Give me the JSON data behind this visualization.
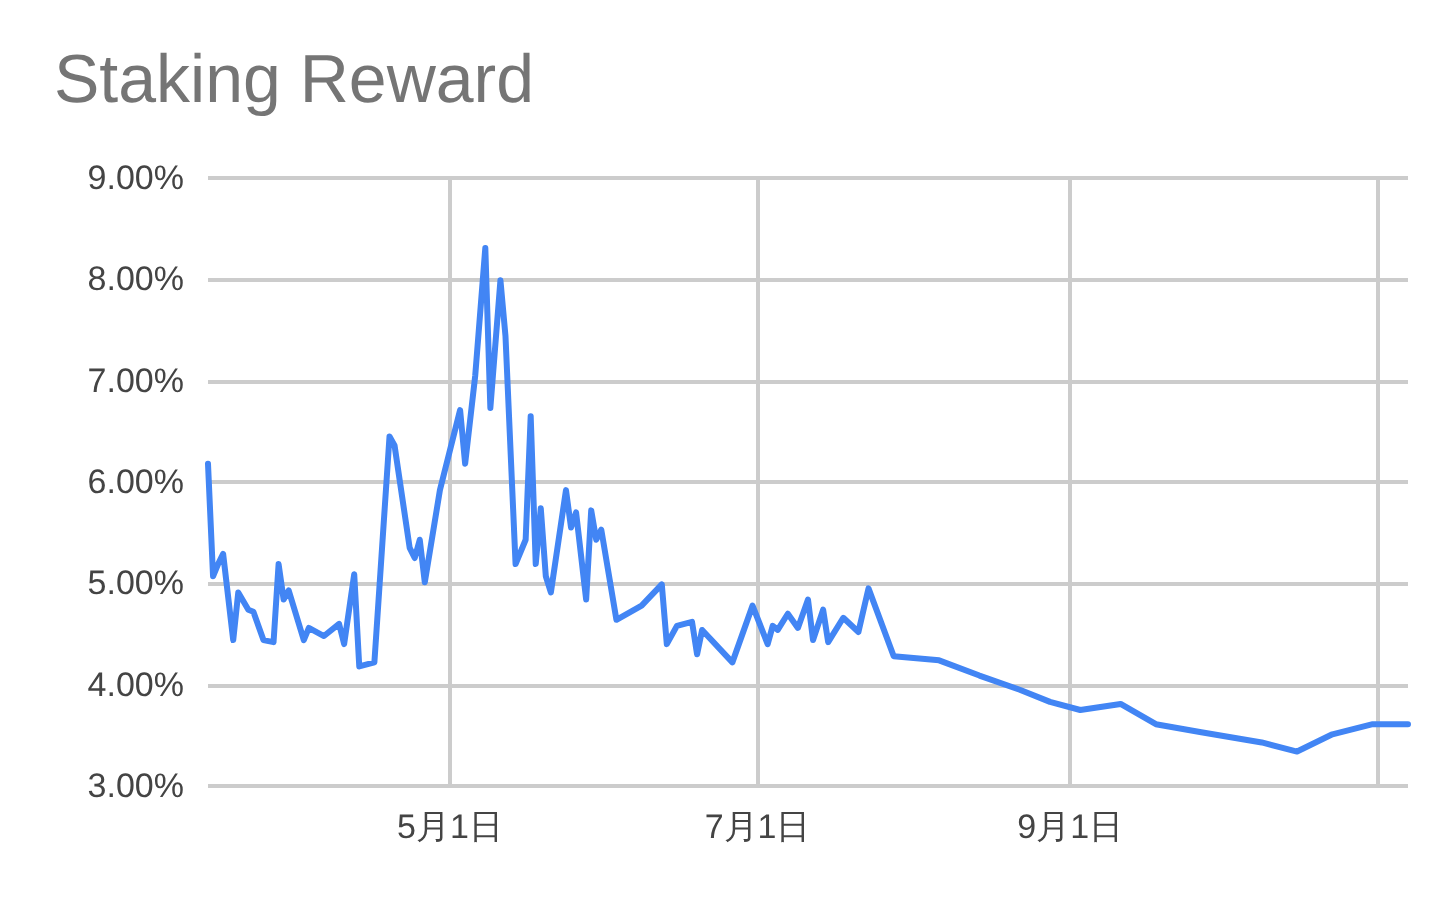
{
  "chart_data": {
    "type": "line",
    "title": "Staking Reward",
    "x": [
      "--03-14",
      "--03-15",
      "--03-16",
      "--03-17",
      "--03-19",
      "--03-20",
      "--03-22",
      "--03-23",
      "--03-25",
      "--03-27",
      "--03-28",
      "--03-29",
      "--03-30",
      "--04-02",
      "--04-03",
      "--04-06",
      "--04-09",
      "--04-10",
      "--04-12",
      "--04-13",
      "--04-16",
      "--04-19",
      "--04-20",
      "--04-23",
      "--04-24",
      "--04-25",
      "--04-26",
      "--04-29",
      "--05-03",
      "--05-04",
      "--05-06",
      "--05-08",
      "--05-09",
      "--05-11",
      "--05-12",
      "--05-14",
      "--05-16",
      "--05-17",
      "--05-18",
      "--05-19",
      "--05-20",
      "--05-21",
      "--05-24",
      "--05-25",
      "--05-26",
      "--05-28",
      "--05-29",
      "--05-30",
      "--05-31",
      "--06-03",
      "--06-08",
      "--06-12",
      "--06-13",
      "--06-15",
      "--06-18",
      "--06-19",
      "--06-20",
      "--06-26",
      "--06-30",
      "--07-03",
      "--07-04",
      "--07-05",
      "--07-07",
      "--07-09",
      "--07-11",
      "--07-12",
      "--07-14",
      "--07-15",
      "--07-18",
      "--07-21",
      "--07-23",
      "--07-28",
      "--08-06",
      "--08-14",
      "--08-22",
      "--08-28",
      "--09-03",
      "--09-11",
      "--09-18",
      "--09-27",
      "--10-09",
      "--10-16",
      "--10-23",
      "--10-31",
      "--11-07"
    ],
    "series": [
      {
        "color": "#4285f4",
        "values": [
          6.18,
          5.07,
          5.19,
          5.29,
          4.44,
          4.91,
          4.74,
          4.72,
          4.44,
          4.42,
          5.19,
          4.84,
          4.93,
          4.44,
          4.56,
          4.48,
          4.6,
          4.4,
          5.09,
          4.18,
          4.22,
          6.45,
          6.36,
          5.35,
          5.25,
          5.43,
          5.01,
          5.92,
          6.71,
          6.18,
          7.05,
          8.31,
          6.73,
          7.99,
          7.44,
          5.19,
          5.43,
          6.65,
          5.19,
          5.74,
          5.07,
          4.91,
          5.92,
          5.55,
          5.7,
          4.84,
          5.72,
          5.43,
          5.53,
          4.64,
          4.78,
          4.99,
          4.4,
          4.58,
          4.62,
          4.3,
          4.54,
          4.22,
          4.78,
          4.4,
          4.58,
          4.54,
          4.7,
          4.56,
          4.84,
          4.44,
          4.74,
          4.42,
          4.66,
          4.52,
          4.95,
          4.28,
          4.24,
          4.09,
          3.95,
          3.83,
          3.75,
          3.81,
          3.61,
          3.53,
          3.43,
          3.34,
          3.51,
          3.61,
          3.61
        ]
      }
    ],
    "xlim": [
      "--03-14",
      "--11-07"
    ],
    "xticks": [
      {
        "value": "--05-01",
        "label": "5月1日"
      },
      {
        "value": "--07-01",
        "label": "7月1日"
      },
      {
        "value": "--09-01",
        "label": "9月1日"
      },
      {
        "value": "--11-01",
        "label": null
      }
    ],
    "ylim": [
      3,
      9
    ],
    "yticks": [
      {
        "value": 3,
        "label": "3.00%"
      },
      {
        "value": 4,
        "label": "4.00%"
      },
      {
        "value": 5,
        "label": "5.00%"
      },
      {
        "value": 6,
        "label": "6.00%"
      },
      {
        "value": 7,
        "label": "7.00%"
      },
      {
        "value": 8,
        "label": "8.00%"
      },
      {
        "value": 9,
        "label": "9.00%"
      }
    ],
    "grid": true,
    "marker": "none",
    "line_style": "solid"
  }
}
